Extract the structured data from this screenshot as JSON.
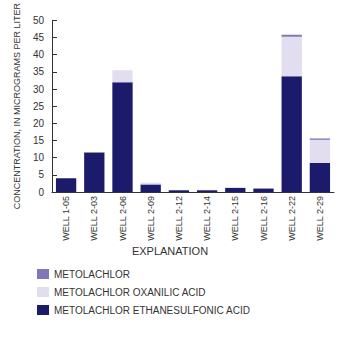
{
  "chart_data": {
    "type": "bar",
    "ylabel": "CONCENTRATION, IN MICROGRAMS PER LITER",
    "legend_title": "EXPLANATION",
    "categories": [
      "WELL 1-05",
      "WELL 2-03",
      "WELL 2-06",
      "WELL 2-09",
      "WELL 2-12",
      "WELL 2-14",
      "WELL 2-15",
      "WELL 2-16",
      "WELL 2-22",
      "WELL 2-29"
    ],
    "series": [
      {
        "name": "METOLACHLOR ETHANESULFONIC ACID",
        "color": "#1c1a6b",
        "values": [
          4,
          11.5,
          32,
          2.2,
          0.5,
          0.5,
          1.2,
          1.0,
          33.7,
          8.5
        ]
      },
      {
        "name": "METOLACHLOR OXANILIC ACID",
        "color": "#e2deef",
        "values": [
          0,
          0,
          3.5,
          0.5,
          0,
          0,
          0,
          0,
          11.5,
          6.7
        ]
      },
      {
        "name": "METOLACHLOR",
        "color": "#7f77b6",
        "values": [
          0,
          0,
          0,
          0,
          0,
          0,
          0,
          0,
          0.6,
          0.4
        ]
      }
    ],
    "stacked": true,
    "ylim": [
      0,
      50
    ],
    "yticks": [
      0,
      5,
      10,
      15,
      20,
      25,
      30,
      35,
      40,
      45,
      50
    ],
    "grid": false,
    "legend": "bottom"
  }
}
